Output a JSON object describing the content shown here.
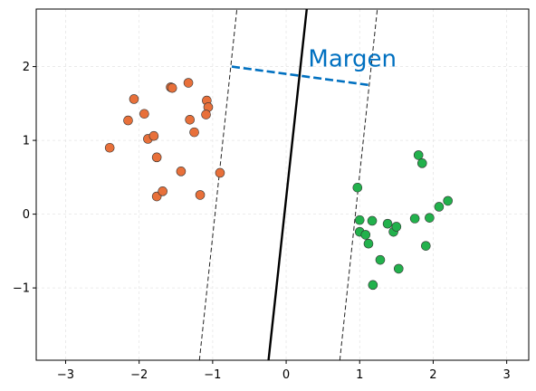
{
  "chart_data": {
    "type": "scatter",
    "title": "",
    "xlabel": "",
    "ylabel": "",
    "xlim": [
      -3.4,
      3.3
    ],
    "ylim": [
      -1.98,
      2.78
    ],
    "xticks": [
      -3,
      -2,
      -1,
      0,
      1,
      2,
      3
    ],
    "yticks": [
      -1,
      0,
      1,
      2
    ],
    "xtick_labels": [
      "−3",
      "−2",
      "−1",
      "0",
      "1",
      "2",
      "3"
    ],
    "ytick_labels": [
      "−1",
      "0",
      "1",
      "2"
    ],
    "grid": true,
    "series": [
      {
        "color": "#e8703a",
        "points": [
          [
            -2.4,
            0.9
          ],
          [
            -2.15,
            1.27
          ],
          [
            -2.07,
            1.56
          ],
          [
            -1.93,
            1.36
          ],
          [
            -1.88,
            1.02
          ],
          [
            -1.8,
            1.06
          ],
          [
            -1.76,
            0.77
          ],
          [
            -1.76,
            0.24
          ],
          [
            -1.68,
            0.31
          ],
          [
            -1.57,
            1.72
          ],
          [
            -1.55,
            1.71
          ],
          [
            -1.43,
            0.58
          ],
          [
            -1.33,
            1.78
          ],
          [
            -1.31,
            1.28
          ],
          [
            -1.25,
            1.11
          ],
          [
            -1.17,
            0.26
          ],
          [
            -1.08,
            1.54
          ],
          [
            -1.06,
            1.45
          ],
          [
            -1.09,
            1.35
          ],
          [
            -0.9,
            0.56
          ]
        ]
      },
      {
        "color": "#22b14c",
        "points": [
          [
            0.97,
            0.36
          ],
          [
            1.0,
            -0.08
          ],
          [
            1.0,
            -0.24
          ],
          [
            1.08,
            -0.28
          ],
          [
            1.12,
            -0.4
          ],
          [
            1.18,
            -0.96
          ],
          [
            1.17,
            -0.09
          ],
          [
            1.28,
            -0.62
          ],
          [
            1.38,
            -0.13
          ],
          [
            1.46,
            -0.24
          ],
          [
            1.5,
            -0.17
          ],
          [
            1.53,
            -0.74
          ],
          [
            1.75,
            -0.06
          ],
          [
            1.8,
            0.8
          ],
          [
            1.85,
            0.69
          ],
          [
            1.9,
            -0.43
          ],
          [
            1.95,
            -0.05
          ],
          [
            2.08,
            0.1
          ],
          [
            2.2,
            0.18
          ]
        ]
      }
    ],
    "decision_boundary": {
      "x": [
        -0.24,
        0.28
      ],
      "y": [
        -1.98,
        2.78
      ],
      "color": "#000000"
    },
    "margin_lines": [
      {
        "x": [
          -1.18,
          -0.67
        ],
        "y": [
          -1.98,
          2.78
        ]
      },
      {
        "x": [
          0.73,
          1.24
        ],
        "y": [
          -1.98,
          2.78
        ]
      }
    ],
    "margin_arrow": {
      "x": [
        -0.74,
        1.13
      ],
      "y": [
        2.0,
        1.75
      ],
      "color": "#0070c0"
    },
    "annotation": {
      "text": "Margen",
      "x": 0.3,
      "y": 2.0,
      "color": "#0070c0"
    }
  }
}
